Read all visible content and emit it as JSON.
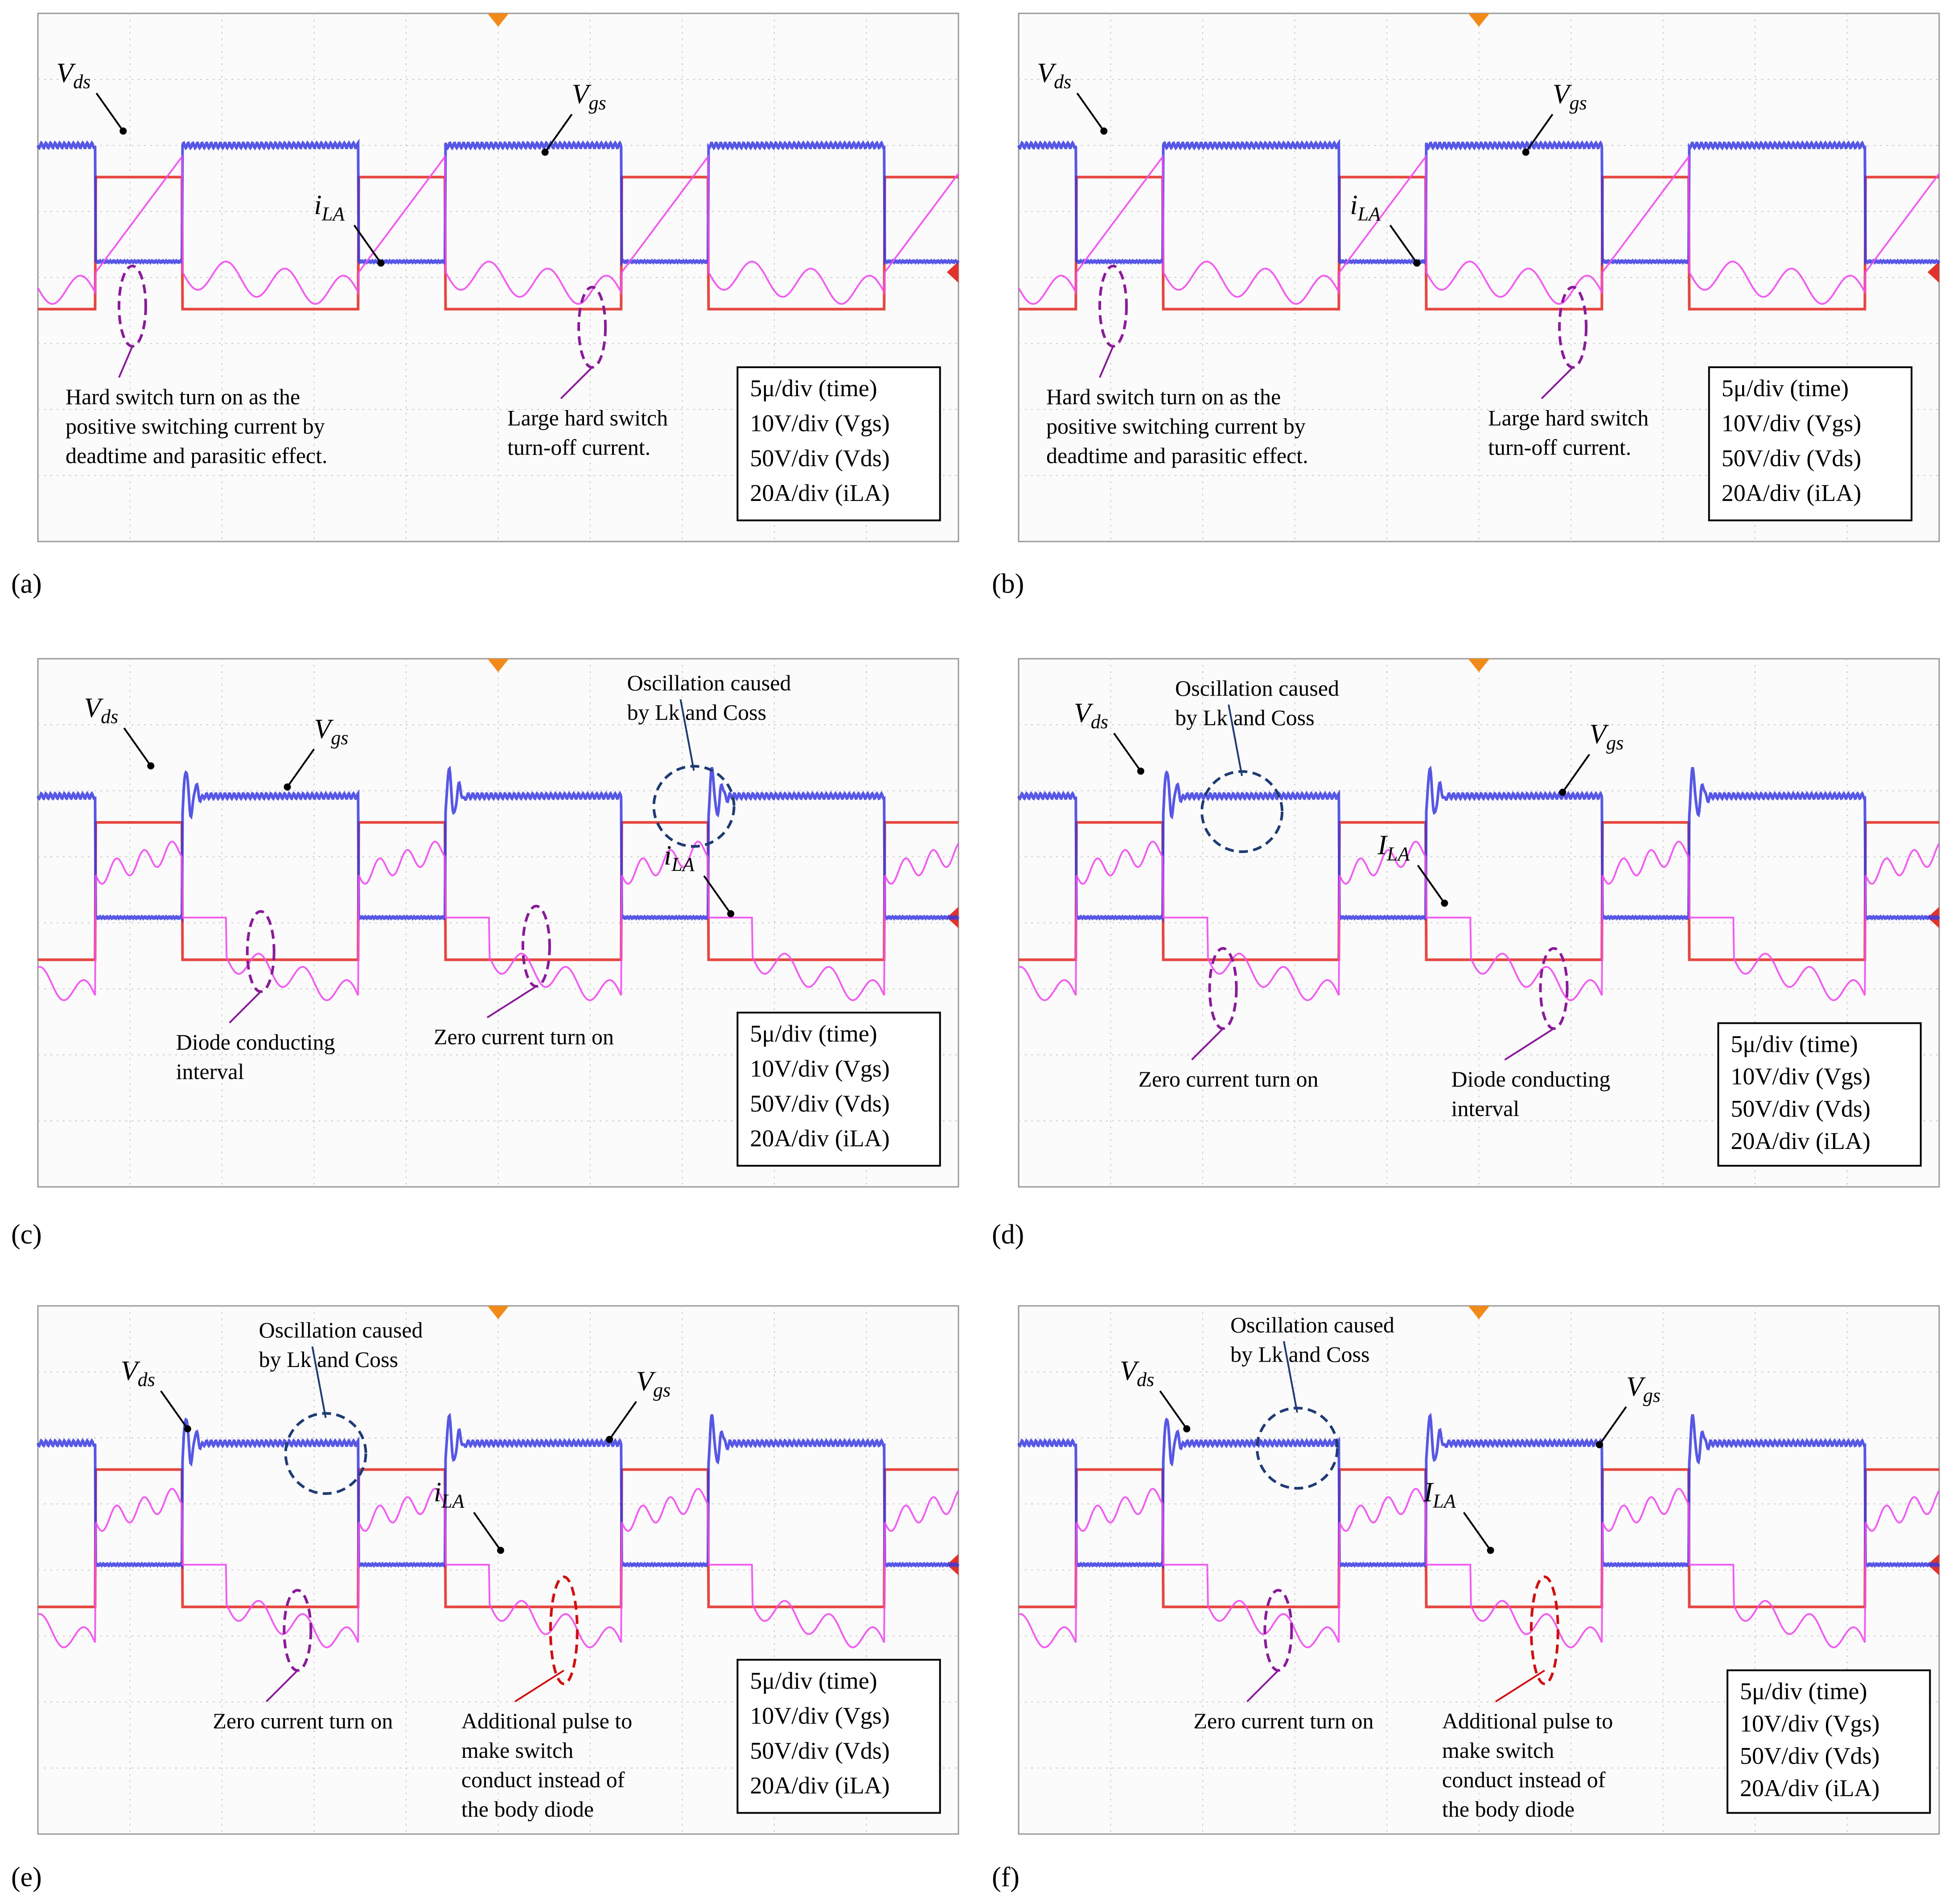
{
  "figure": {
    "panels": [
      {
        "id": "a",
        "label": "(a)",
        "traces": [
          "Vds",
          "Vgs",
          "iLA"
        ],
        "trace_labels": {
          "Vds": {
            "main": "V",
            "sub": "ds"
          },
          "Vgs": {
            "main": "V",
            "sub": "gs"
          },
          "iLA": {
            "main": "i",
            "sub": "LA"
          }
        },
        "annotations": [
          {
            "text": [
              "Hard switch turn on as the",
              "positive switching current by",
              "deadtime and parasitic effect."
            ],
            "marker_color": "#8a1a9a"
          },
          {
            "text": [
              "Large hard switch",
              "turn-off current."
            ],
            "marker_color": "#8a1a9a"
          }
        ],
        "scale_box": [
          "5μ/div (time)",
          "10V/div (Vgs)",
          "50V/div (Vds)",
          "20A/div (iLA)"
        ]
      },
      {
        "id": "b",
        "label": "(b)",
        "traces": [
          "Vds",
          "Vgs",
          "iLA"
        ],
        "trace_labels": {
          "Vds": {
            "main": "V",
            "sub": "ds"
          },
          "Vgs": {
            "main": "V",
            "sub": "gs"
          },
          "iLA": {
            "main": "i",
            "sub": "LA"
          }
        },
        "annotations": [
          {
            "text": [
              "Hard switch turn on as the",
              "positive switching current by",
              "deadtime and parasitic effect."
            ],
            "marker_color": "#8a1a9a"
          },
          {
            "text": [
              "Large hard switch",
              "turn-off current."
            ],
            "marker_color": "#8a1a9a"
          }
        ],
        "scale_box": [
          "5μ/div (time)",
          "10V/div (Vgs)",
          "50V/div (Vds)",
          "20A/div (iLA)"
        ]
      },
      {
        "id": "c",
        "label": "(c)",
        "traces": [
          "Vds",
          "Vgs",
          "iLA"
        ],
        "trace_labels": {
          "Vds": {
            "main": "V",
            "sub": "ds"
          },
          "Vgs": {
            "main": "V",
            "sub": "gs"
          },
          "iLA": {
            "main": "i",
            "sub": "LA"
          }
        },
        "annotations": [
          {
            "text": [
              "Oscillation caused",
              "by Lk and Coss"
            ],
            "marker_color": "#1f3b73"
          },
          {
            "text": [
              "Diode conducting",
              "interval"
            ],
            "marker_color": "#8a1a9a"
          },
          {
            "text": [
              "Zero current turn on"
            ],
            "marker_color": "#8a1a9a"
          }
        ],
        "scale_box": [
          "5μ/div (time)",
          "10V/div (Vgs)",
          "50V/div (Vds)",
          "20A/div (iLA)"
        ]
      },
      {
        "id": "d",
        "label": "(d)",
        "traces": [
          "Vds",
          "Vgs",
          "ILA"
        ],
        "trace_labels": {
          "Vds": {
            "main": "V",
            "sub": "ds"
          },
          "Vgs": {
            "main": "V",
            "sub": "gs"
          },
          "iLA": {
            "main": "I",
            "sub": "LA"
          }
        },
        "annotations": [
          {
            "text": [
              "Oscillation caused",
              "by Lk and Coss"
            ],
            "marker_color": "#1f3b73"
          },
          {
            "text": [
              "Zero current turn on"
            ],
            "marker_color": "#8a1a9a"
          },
          {
            "text": [
              "Diode conducting",
              "interval"
            ],
            "marker_color": "#8a1a9a"
          }
        ],
        "scale_box": [
          "5μ/div (time)",
          "10V/div (Vgs)",
          "50V/div (Vds)",
          "20A/div (iLA)"
        ]
      },
      {
        "id": "e",
        "label": "(e)",
        "traces": [
          "Vds",
          "Vgs",
          "iLA"
        ],
        "trace_labels": {
          "Vds": {
            "main": "V",
            "sub": "ds"
          },
          "Vgs": {
            "main": "V",
            "sub": "gs"
          },
          "iLA": {
            "main": "i",
            "sub": "LA"
          }
        },
        "annotations": [
          {
            "text": [
              "Oscillation caused",
              "by Lk and Coss"
            ],
            "marker_color": "#1f3b73"
          },
          {
            "text": [
              "Zero current turn on"
            ],
            "marker_color": "#8a1a9a"
          },
          {
            "text": [
              "Additional pulse to",
              "make switch",
              "conduct instead of",
              "the body diode"
            ],
            "marker_color": "#d01010"
          }
        ],
        "scale_box": [
          "5μ/div (time)",
          "10V/div (Vgs)",
          "50V/div (Vds)",
          "20A/div (iLA)"
        ]
      },
      {
        "id": "f",
        "label": "(f)",
        "traces": [
          "Vds",
          "Vgs",
          "ILA"
        ],
        "trace_labels": {
          "Vds": {
            "main": "V",
            "sub": "ds"
          },
          "Vgs": {
            "main": "V",
            "sub": "gs"
          },
          "iLA": {
            "main": "I",
            "sub": "LA"
          }
        },
        "annotations": [
          {
            "text": [
              "Oscillation caused",
              "by Lk and Coss"
            ],
            "marker_color": "#1f3b73"
          },
          {
            "text": [
              "Zero current turn on"
            ],
            "marker_color": "#8a1a9a"
          },
          {
            "text": [
              "Additional pulse to",
              "make switch",
              "conduct instead of",
              "the body diode"
            ],
            "marker_color": "#d01010"
          }
        ],
        "scale_box": [
          "5μ/div (time)",
          "10V/div (Vgs)",
          "50V/div (Vds)",
          "20A/div (iLA)"
        ]
      }
    ]
  },
  "colors": {
    "vds": "#3a3ae0",
    "vgs": "#e2332b",
    "ila": "#f04cf0",
    "grid": "#c8c8c8",
    "trigger": "#f28a1a",
    "annot_purple": "#8a1a9a",
    "annot_blue": "#1f3b73",
    "annot_red": "#d01010"
  },
  "chart_data": [
    {
      "type": "line",
      "panel": "a",
      "xlabel": "",
      "ylabel": "",
      "grid": true,
      "series": [
        {
          "name": "Vds",
          "color": "#3a3ae0"
        },
        {
          "name": "Vgs",
          "color": "#e2332b"
        },
        {
          "name": "iLA",
          "color": "#f04cf0"
        }
      ],
      "scales": {
        "time": "5μ/div",
        "Vgs": "10V/div",
        "Vds": "50V/div",
        "iLA": "20A/div"
      }
    },
    {
      "type": "line",
      "panel": "b",
      "xlabel": "",
      "ylabel": "",
      "grid": true,
      "series": [
        {
          "name": "Vds",
          "color": "#3a3ae0"
        },
        {
          "name": "Vgs",
          "color": "#e2332b"
        },
        {
          "name": "iLA",
          "color": "#f04cf0"
        }
      ],
      "scales": {
        "time": "5μ/div",
        "Vgs": "10V/div",
        "Vds": "50V/div",
        "iLA": "20A/div"
      }
    },
    {
      "type": "line",
      "panel": "c",
      "xlabel": "",
      "ylabel": "",
      "grid": true,
      "series": [
        {
          "name": "Vds",
          "color": "#3a3ae0"
        },
        {
          "name": "Vgs",
          "color": "#e2332b"
        },
        {
          "name": "iLA",
          "color": "#f04cf0"
        }
      ],
      "scales": {
        "time": "5μ/div",
        "Vgs": "10V/div",
        "Vds": "50V/div",
        "iLA": "20A/div"
      }
    },
    {
      "type": "line",
      "panel": "d",
      "xlabel": "",
      "ylabel": "",
      "grid": true,
      "series": [
        {
          "name": "Vds",
          "color": "#3a3ae0"
        },
        {
          "name": "Vgs",
          "color": "#e2332b"
        },
        {
          "name": "ILA",
          "color": "#f04cf0"
        }
      ],
      "scales": {
        "time": "5μ/div",
        "Vgs": "10V/div",
        "Vds": "50V/div",
        "iLA": "20A/div"
      }
    },
    {
      "type": "line",
      "panel": "e",
      "xlabel": "",
      "ylabel": "",
      "grid": true,
      "series": [
        {
          "name": "Vds",
          "color": "#3a3ae0"
        },
        {
          "name": "Vgs",
          "color": "#e2332b"
        },
        {
          "name": "iLA",
          "color": "#f04cf0"
        }
      ],
      "scales": {
        "time": "5μ/div",
        "Vgs": "10V/div",
        "Vds": "50V/div",
        "iLA": "20A/div"
      }
    },
    {
      "type": "line",
      "panel": "f",
      "xlabel": "",
      "ylabel": "",
      "grid": true,
      "series": [
        {
          "name": "Vds",
          "color": "#3a3ae0"
        },
        {
          "name": "Vgs",
          "color": "#e2332b"
        },
        {
          "name": "ILA",
          "color": "#f04cf0"
        }
      ],
      "scales": {
        "time": "5μ/div",
        "Vgs": "10V/div",
        "Vds": "50V/div",
        "iLA": "20A/div"
      }
    }
  ]
}
